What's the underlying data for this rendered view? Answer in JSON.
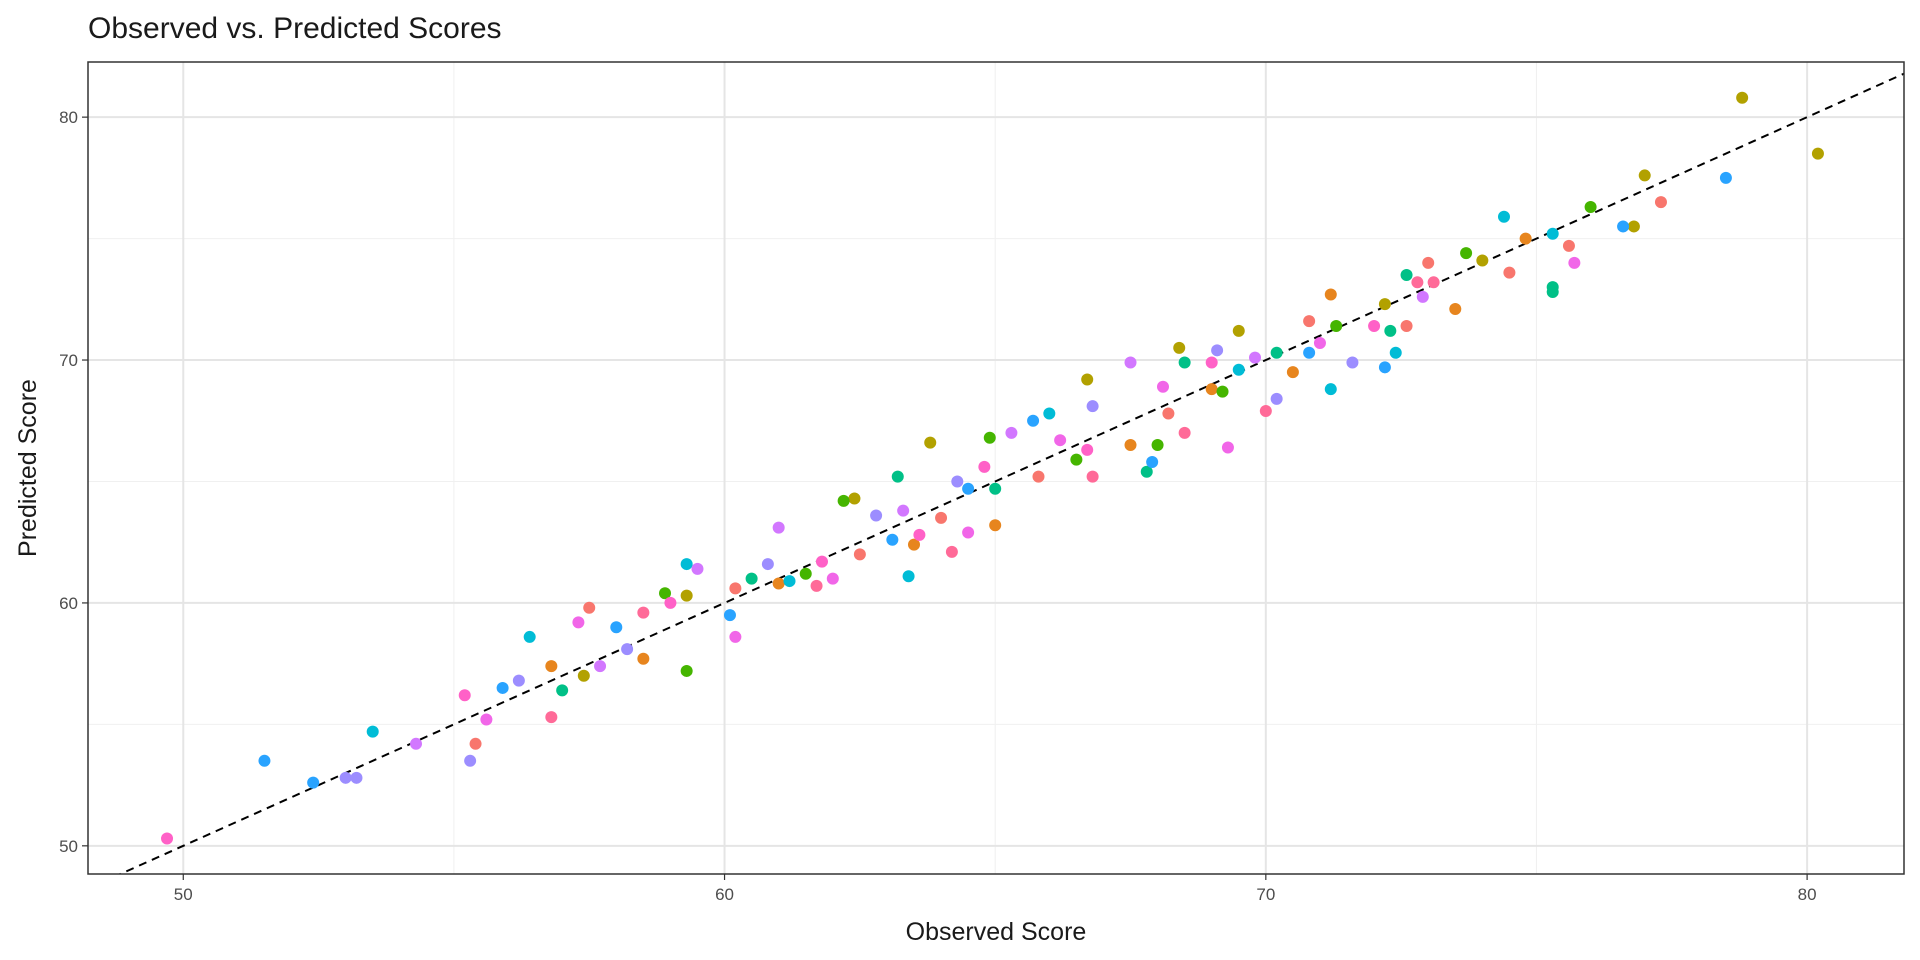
{
  "chart_data": {
    "type": "scatter",
    "title": "Observed vs. Predicted Scores",
    "x_label": "Observed Score",
    "y_label": "Predicted Score",
    "xlim": [
      48.24,
      81.79
    ],
    "ylim": [
      48.84,
      82.27
    ],
    "xticks": [
      50,
      60,
      70,
      80
    ],
    "yticks": [
      50,
      60,
      70,
      80
    ],
    "minor_xticks": [
      55,
      65,
      75
    ],
    "minor_yticks": [
      55,
      65,
      75
    ],
    "grid": true,
    "identity_line": true,
    "series": [
      {
        "color": "#F8766D",
        "x": [
          55.4,
          57.5,
          60.2,
          62.5,
          64.0,
          65.8,
          68.2,
          70.8,
          72.6,
          74.5,
          75.6,
          77.3,
          73.0
        ],
        "values": [
          54.2,
          59.8,
          60.6,
          62.0,
          63.5,
          65.2,
          67.8,
          71.6,
          71.4,
          73.6,
          74.7,
          76.5,
          74.0
        ]
      },
      {
        "color": "#E7851E",
        "x": [
          56.8,
          58.5,
          61.0,
          63.5,
          65.0,
          67.5,
          69.0,
          70.5,
          71.2,
          73.5,
          74.8
        ],
        "values": [
          57.4,
          57.7,
          60.8,
          62.4,
          63.2,
          66.5,
          68.8,
          69.5,
          72.7,
          72.1,
          75.0
        ]
      },
      {
        "color": "#B2A100",
        "x": [
          57.4,
          59.3,
          62.4,
          63.8,
          66.7,
          68.4,
          69.5,
          72.2,
          74.0,
          76.8,
          77.0,
          78.8,
          80.2
        ],
        "values": [
          57.0,
          60.3,
          64.3,
          66.6,
          69.2,
          70.5,
          71.2,
          72.3,
          74.1,
          75.5,
          77.6,
          80.8,
          78.5
        ]
      },
      {
        "color": "#45B500",
        "x": [
          58.9,
          59.3,
          61.5,
          62.2,
          64.9,
          66.5,
          68.0,
          69.2,
          71.3,
          73.7,
          76.0
        ],
        "values": [
          60.4,
          57.2,
          61.2,
          64.2,
          66.8,
          65.9,
          66.5,
          68.7,
          71.4,
          74.4,
          76.3
        ]
      },
      {
        "color": "#00C087",
        "x": [
          57.0,
          60.5,
          63.2,
          65.0,
          67.8,
          68.5,
          70.2,
          72.3,
          72.6,
          75.3,
          75.3
        ],
        "values": [
          56.4,
          61.0,
          65.2,
          64.7,
          65.4,
          69.9,
          70.3,
          71.2,
          73.5,
          73.0,
          72.8
        ]
      },
      {
        "color": "#00BCD6",
        "x": [
          53.5,
          56.4,
          59.3,
          61.2,
          63.4,
          66.0,
          69.5,
          71.2,
          72.4,
          74.4,
          75.3
        ],
        "values": [
          54.7,
          58.6,
          61.6,
          60.9,
          61.1,
          67.8,
          69.6,
          68.8,
          70.3,
          75.9,
          75.2
        ]
      },
      {
        "color": "#29A3FF",
        "x": [
          51.5,
          52.4,
          55.9,
          58.0,
          60.1,
          63.1,
          64.5,
          65.7,
          67.9,
          70.8,
          72.2,
          76.6,
          78.5
        ],
        "values": [
          53.5,
          52.6,
          56.5,
          59.0,
          59.5,
          62.6,
          64.7,
          67.5,
          65.8,
          70.3,
          69.7,
          75.5,
          77.5
        ]
      },
      {
        "color": "#9C8DFF",
        "x": [
          53.0,
          53.2,
          55.3,
          56.2,
          58.2,
          60.8,
          62.8,
          64.3,
          66.8,
          69.1,
          70.2,
          71.6
        ],
        "values": [
          52.8,
          52.8,
          53.5,
          56.8,
          58.1,
          61.6,
          63.6,
          65.0,
          68.1,
          70.4,
          68.4,
          69.9
        ]
      },
      {
        "color": "#D277FF",
        "x": [
          54.3,
          57.7,
          59.5,
          61.0,
          63.3,
          65.3,
          67.5,
          69.8,
          72.9
        ],
        "values": [
          54.2,
          57.4,
          61.4,
          63.1,
          63.8,
          67.0,
          69.9,
          70.1,
          72.6
        ]
      },
      {
        "color": "#F166E8",
        "x": [
          55.6,
          57.3,
          60.2,
          62.0,
          64.5,
          66.2,
          68.1,
          69.3,
          71.0,
          75.7
        ],
        "values": [
          55.2,
          59.2,
          58.6,
          61.0,
          62.9,
          66.7,
          68.9,
          66.4,
          70.7,
          74.0
        ]
      },
      {
        "color": "#FF61C7",
        "x": [
          49.7,
          55.2,
          59.0,
          61.8,
          63.6,
          64.8,
          66.7,
          69.0,
          72.0
        ],
        "values": [
          50.3,
          56.2,
          60.0,
          61.7,
          62.8,
          65.6,
          66.3,
          69.9,
          71.4
        ]
      },
      {
        "color": "#FF6A98",
        "x": [
          56.8,
          58.5,
          61.7,
          64.2,
          66.8,
          68.5,
          70.0,
          72.8,
          73.1
        ],
        "values": [
          55.3,
          59.6,
          60.7,
          62.1,
          65.2,
          67.0,
          67.9,
          73.2,
          73.2
        ]
      }
    ]
  }
}
